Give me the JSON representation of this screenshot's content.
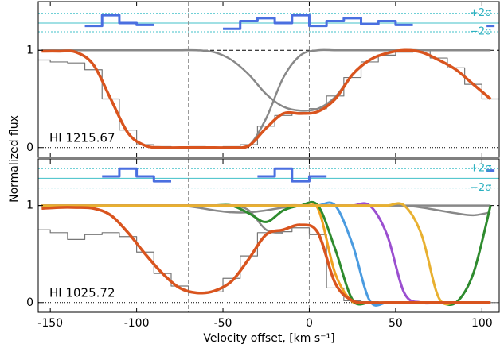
{
  "chart_data": [
    {
      "type": "line",
      "y_label": "Normalized flux",
      "label": "HI 1215.67",
      "x": [
        -155,
        -145,
        -135,
        -125,
        -115,
        -105,
        -95,
        -85,
        -75,
        -65,
        -55,
        -45,
        -35,
        -25,
        -15,
        -5,
        5,
        15,
        25,
        35,
        45,
        55,
        65,
        75,
        85,
        95,
        105
      ],
      "xlim": [
        -157,
        110
      ],
      "ylim": [
        -0.1,
        1.5
      ],
      "yticks": [
        0,
        1
      ],
      "vlines": [
        -70,
        0
      ],
      "hlines": [
        0,
        1
      ],
      "sigma_lines": [
        {
          "value": 1.38,
          "label": "+2σ"
        },
        {
          "value": 1.28
        },
        {
          "value": 1.19,
          "label": "−2σ"
        }
      ],
      "series": [
        {
          "color": "#777777",
          "style": "step",
          "width": 1.2,
          "values": [
            0.9,
            0.88,
            0.87,
            0.8,
            0.5,
            0.18,
            0.03,
            0.01,
            0,
            0.01,
            0,
            0.01,
            0.03,
            0.22,
            0.33,
            0.36,
            0.4,
            0.53,
            0.72,
            0.88,
            0.95,
            0.98,
            1.0,
            0.92,
            0.82,
            0.65,
            0.5
          ]
        },
        {
          "color": "#888888",
          "style": "smooth",
          "width": 2.5,
          "values": [
            1,
            1,
            1,
            1,
            1,
            1,
            1,
            1,
            1,
            1,
            0.98,
            0.9,
            0.75,
            0.55,
            0.42,
            0.38,
            0.4,
            0.52,
            0.75,
            0.9,
            0.97,
            1,
            1,
            1,
            1,
            1,
            1
          ]
        },
        {
          "color": "#888888",
          "style": "smooth",
          "width": 2.5,
          "values": [
            null,
            null,
            null,
            null,
            null,
            null,
            null,
            null,
            null,
            null,
            null,
            0,
            0.02,
            0.3,
            0.72,
            0.95,
            1,
            1,
            1,
            1,
            1,
            1,
            1,
            1,
            1,
            1,
            1
          ]
        },
        {
          "color": "#d9541e",
          "style": "smooth",
          "width": 3.5,
          "values": [
            0.99,
            0.99,
            0.98,
            0.85,
            0.5,
            0.15,
            0.02,
            0,
            0,
            0,
            0,
            0,
            0.02,
            0.2,
            0.35,
            0.35,
            0.37,
            0.5,
            0.75,
            0.9,
            0.97,
            1.0,
            0.98,
            0.9,
            0.8,
            0.65,
            0.5
          ]
        },
        {
          "color": "#4a6fe0",
          "style": "step",
          "width": 3,
          "values": [
            null,
            null,
            null,
            1.25,
            1.36,
            1.28,
            1.26,
            null,
            null,
            null,
            null,
            1.22,
            1.3,
            1.33,
            1.28,
            1.36,
            1.25,
            1.3,
            1.33,
            1.27,
            1.3,
            1.26,
            null,
            null,
            null,
            null,
            1.25
          ]
        }
      ]
    },
    {
      "type": "line",
      "label": "HI 1025.72",
      "x_label": "Velocity offset, [km s⁻¹]",
      "x": [
        -155,
        -145,
        -135,
        -125,
        -115,
        -105,
        -95,
        -85,
        -75,
        -65,
        -55,
        -45,
        -35,
        -25,
        -15,
        -5,
        5,
        15,
        25,
        35,
        45,
        55,
        65,
        75,
        85,
        95,
        105
      ],
      "xlim": [
        -157,
        110
      ],
      "xticks": [
        -150,
        -100,
        -50,
        0,
        50,
        100
      ],
      "ylim": [
        -0.1,
        1.48
      ],
      "yticks": [
        0,
        1
      ],
      "vlines": [
        -70,
        0
      ],
      "hlines": [
        0,
        1
      ],
      "sigma_lines": [
        {
          "value": 1.38,
          "label": "+2σ"
        },
        {
          "value": 1.28
        },
        {
          "value": 1.18,
          "label": "−2σ"
        }
      ],
      "series": [
        {
          "color": "#777777",
          "style": "step",
          "width": 1.2,
          "values": [
            0.75,
            0.72,
            0.65,
            0.7,
            0.72,
            0.68,
            0.52,
            0.3,
            0.17,
            0.1,
            0.11,
            0.25,
            0.48,
            0.72,
            0.73,
            0.77,
            0.7,
            0.15,
            0.02,
            0.01,
            0,
            0,
            0,
            0,
            0,
            0,
            0
          ]
        },
        {
          "color": "#888888",
          "style": "smooth",
          "width": 2.5,
          "values": [
            1,
            1,
            1,
            1,
            1,
            1,
            1,
            1,
            1,
            0.98,
            0.95,
            0.93,
            0.93,
            0.95,
            0.98,
            1,
            1,
            1,
            1,
            1,
            1,
            1,
            1,
            1,
            1,
            1,
            1
          ]
        },
        {
          "color": "#888888",
          "style": "smooth",
          "width": 2.5,
          "values": [
            1,
            1,
            1,
            1,
            1,
            1,
            1,
            1,
            1,
            1,
            1,
            1,
            0.95,
            0.75,
            0.72,
            null,
            null,
            null,
            null,
            null,
            null,
            null,
            null,
            null,
            null,
            null,
            null
          ]
        },
        {
          "color": "#888888",
          "style": "smooth",
          "width": 2.5,
          "values": [
            1,
            1,
            1,
            1,
            1,
            1,
            1,
            1,
            1,
            1,
            1,
            1,
            1,
            1,
            1,
            1,
            1,
            1,
            1,
            1,
            1,
            1,
            0.98,
            0.95,
            0.92,
            0.9,
            0.93
          ]
        },
        {
          "color": "#f0a020",
          "style": "smooth",
          "width": 3,
          "values": [
            1,
            1,
            1,
            1,
            1,
            1,
            1,
            1,
            1,
            1,
            1,
            1,
            1,
            1,
            1,
            1,
            0.97,
            0.3,
            0.01,
            0,
            0,
            0,
            0,
            0,
            0,
            0,
            0
          ]
        },
        {
          "color": "#2e8b2e",
          "style": "smooth",
          "width": 3,
          "values": [
            1,
            1,
            1,
            1,
            1,
            1,
            1,
            1,
            1,
            1,
            1,
            1,
            0.92,
            0.83,
            0.95,
            1,
            1,
            0.55,
            0.03,
            0,
            0,
            0,
            0,
            0,
            0,
            0.3,
            1
          ]
        },
        {
          "color": "#4a9be0",
          "style": "smooth",
          "width": 3,
          "values": [
            1,
            1,
            1,
            1,
            1,
            1,
            1,
            1,
            1,
            1,
            1,
            1,
            1,
            1,
            1,
            1,
            1,
            1,
            0.6,
            0.02,
            0,
            0,
            0,
            0,
            0,
            0,
            0
          ]
        },
        {
          "color": "#9b4fd0",
          "style": "smooth",
          "width": 3,
          "values": [
            1,
            1,
            1,
            1,
            1,
            1,
            1,
            1,
            1,
            1,
            1,
            1,
            1,
            1,
            1,
            1,
            1,
            1,
            1,
            1,
            0.7,
            0.1,
            0,
            0,
            0,
            0,
            0
          ]
        },
        {
          "color": "#e8b030",
          "style": "smooth",
          "width": 3,
          "values": [
            1,
            1,
            1,
            1,
            1,
            1,
            1,
            1,
            1,
            1,
            1,
            1,
            1,
            1,
            1,
            1,
            1,
            1,
            1,
            1,
            1,
            1,
            0.7,
            0.05,
            0,
            0,
            0
          ]
        },
        {
          "color": "#d9541e",
          "style": "smooth",
          "width": 3.5,
          "values": [
            0.97,
            0.98,
            0.98,
            0.97,
            0.9,
            0.72,
            0.5,
            0.3,
            0.15,
            0.1,
            0.12,
            0.22,
            0.45,
            0.7,
            0.75,
            0.8,
            0.72,
            0.2,
            0.02,
            0,
            0,
            0,
            0,
            0,
            0,
            0,
            0
          ]
        },
        {
          "color": "#4a6fe0",
          "style": "step",
          "width": 3,
          "values": [
            null,
            null,
            null,
            null,
            1.3,
            1.38,
            1.3,
            1.25,
            null,
            null,
            null,
            null,
            null,
            1.3,
            1.38,
            1.25,
            1.3,
            null,
            null,
            null,
            null,
            null,
            null,
            null,
            null,
            null,
            1.36
          ]
        }
      ]
    }
  ]
}
